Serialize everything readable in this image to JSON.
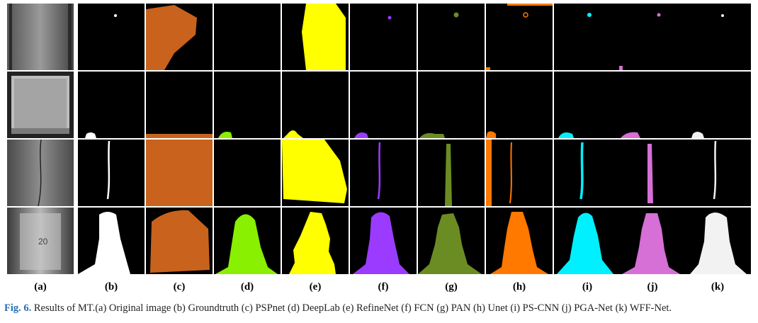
{
  "figure": {
    "letters": [
      "(a)",
      "(b)",
      "(c)",
      "(d)",
      "(e)",
      "(f)",
      "(g)",
      "(h)",
      "(i)",
      "(j)",
      "(k)"
    ],
    "caption_label": "Fig. 6.",
    "caption_text": "Results of MT.(a) Original image (b) Groundtruth (c) PSPnet (d) DeepLab (e) RefineNet (f) FCN (g) PAN (h) Unet (i) PS-CNN (j) PGA-Net (k) WFF-Net.",
    "sample_digit_text": "20",
    "colors": {
      "groundtruth": "#ffffff",
      "pspnet": "#c8621c",
      "deeplab": "#88f000",
      "refinenet": "#ffff00",
      "fcn": "#9a3bff",
      "pan": "#6b8c23",
      "unet": "#ff7800",
      "pscnn": "#00f0ff",
      "pganet": "#d66fd6",
      "wffnet": "#f2f2f2"
    }
  }
}
